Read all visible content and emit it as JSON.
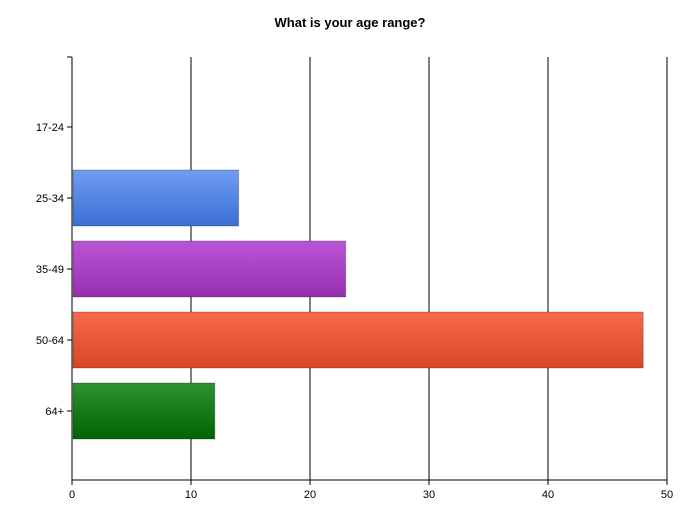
{
  "chart_data": {
    "type": "bar",
    "orientation": "horizontal",
    "title": "What is your age range?",
    "xlabel": "",
    "ylabel": "",
    "categories": [
      "17-24",
      "25-34",
      "35-49",
      "50-64",
      "64+"
    ],
    "values": [
      0,
      14,
      23,
      48,
      12
    ],
    "xlim": [
      0,
      50
    ],
    "xticks": [
      "0",
      "10",
      "20",
      "30",
      "40",
      "50"
    ],
    "grid": "vertical",
    "legend": "none",
    "bar_colors": [
      {
        "top": "#6f9df0",
        "bottom": "#3a6fd4"
      },
      {
        "top": "#6f9df0",
        "bottom": "#3a6fd4"
      },
      {
        "top": "#bb55d6",
        "bottom": "#9430b0"
      },
      {
        "top": "#f76a4d",
        "bottom": "#da4527"
      },
      {
        "top": "#2b9330",
        "bottom": "#006500"
      }
    ]
  }
}
